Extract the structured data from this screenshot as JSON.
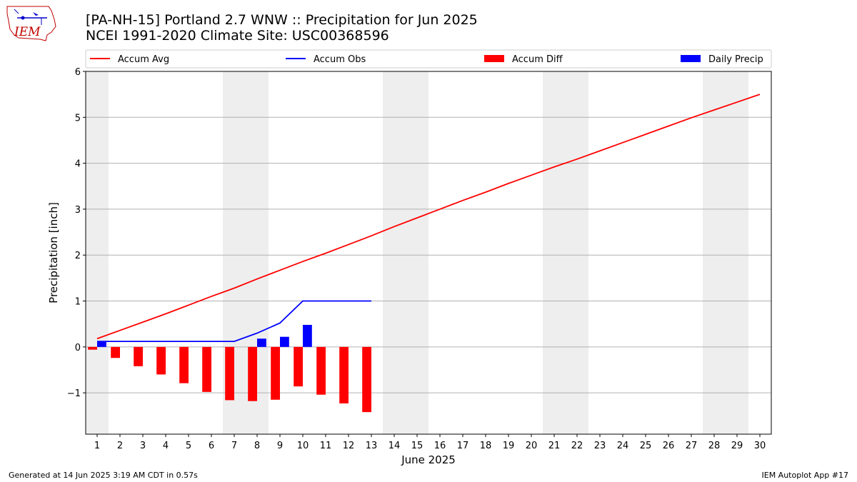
{
  "header": {
    "title_line1": "[PA-NH-15] Portland 2.7 WNW :: Precipitation for Jun 2025",
    "title_line2": "NCEI 1991-2020 Climate Site: USC00368596",
    "logo_text": "IEM"
  },
  "footer": {
    "left": "Generated at 14 Jun 2025 3:19 AM CDT in 0.57s",
    "right": "IEM Autoplot App #17"
  },
  "colors": {
    "accum_avg": "#ff0000",
    "accum_obs": "#0000ff",
    "accum_diff": "#ff0000",
    "daily_precip": "#0000ff",
    "weekend_band": "#eeeeee",
    "grid": "#b0b0b0"
  },
  "chart_data": {
    "type": "line",
    "xlabel": "June 2025",
    "ylabel": "Precipitation [inch]",
    "xlim": [
      0.5,
      30.5
    ],
    "ylim": [
      -1.9,
      6
    ],
    "yticks": [
      -1,
      0,
      1,
      2,
      3,
      4,
      5,
      6
    ],
    "ytick_labels": [
      "−1",
      "0",
      "1",
      "2",
      "3",
      "4",
      "5",
      "6"
    ],
    "grid": "horizontal",
    "legend_placement": "top, above plot",
    "legend": [
      "Accum Avg",
      "Accum Obs",
      "Accum Diff",
      "Daily Precip"
    ],
    "categories": [
      "1",
      "2",
      "3",
      "4",
      "5",
      "6",
      "7",
      "8",
      "9",
      "10",
      "11",
      "12",
      "13",
      "14",
      "15",
      "16",
      "17",
      "18",
      "19",
      "20",
      "21",
      "22",
      "23",
      "24",
      "25",
      "26",
      "27",
      "28",
      "29",
      "30"
    ],
    "weekend_bands": [
      [
        0.5,
        1.5
      ],
      [
        6.5,
        8.5
      ],
      [
        13.5,
        15.5
      ],
      [
        20.5,
        22.5
      ],
      [
        27.5,
        29.5
      ]
    ],
    "series": [
      {
        "name": "Accum Avg",
        "kind": "line",
        "x": [
          1,
          2,
          3,
          4,
          5,
          6,
          7,
          8,
          9,
          10,
          11,
          12,
          13,
          14,
          15,
          16,
          17,
          18,
          19,
          20,
          21,
          22,
          23,
          24,
          25,
          26,
          27,
          28,
          29,
          30
        ],
        "values": [
          0.18,
          0.36,
          0.54,
          0.72,
          0.91,
          1.1,
          1.28,
          1.48,
          1.67,
          1.86,
          2.04,
          2.23,
          2.42,
          2.62,
          2.81,
          3.0,
          3.19,
          3.37,
          3.56,
          3.74,
          3.92,
          4.09,
          4.27,
          4.45,
          4.63,
          4.81,
          4.99,
          5.16,
          5.33,
          5.5
        ]
      },
      {
        "name": "Accum Obs",
        "kind": "line",
        "x": [
          1,
          2,
          3,
          4,
          5,
          6,
          7,
          8,
          9,
          10,
          11,
          12,
          13
        ],
        "values": [
          0.12,
          0.12,
          0.12,
          0.12,
          0.12,
          0.12,
          0.12,
          0.3,
          0.52,
          1.0,
          1.0,
          1.0,
          1.0
        ]
      },
      {
        "name": "Accum Diff",
        "kind": "bar",
        "x": [
          1,
          2,
          3,
          4,
          5,
          6,
          7,
          8,
          9,
          10,
          11,
          12,
          13
        ],
        "values": [
          -0.06,
          -0.24,
          -0.42,
          -0.6,
          -0.79,
          -0.98,
          -1.16,
          -1.18,
          -1.15,
          -0.86,
          -1.04,
          -1.23,
          -1.42
        ]
      },
      {
        "name": "Daily Precip",
        "kind": "bar",
        "x": [
          1,
          2,
          3,
          4,
          5,
          6,
          7,
          8,
          9,
          10,
          11,
          12,
          13
        ],
        "values": [
          0.12,
          0,
          0,
          0,
          0,
          0,
          0,
          0.18,
          0.22,
          0.48,
          0,
          0,
          0
        ]
      }
    ]
  }
}
